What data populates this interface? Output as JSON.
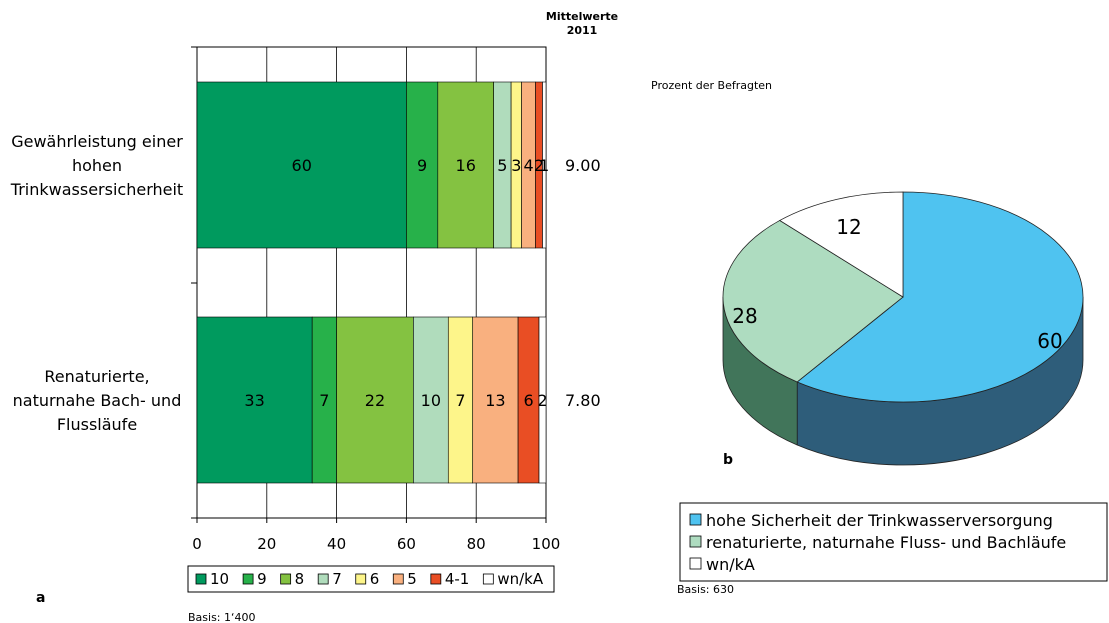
{
  "chart_data": [
    {
      "type": "bar",
      "orientation": "horizontal",
      "stacked": true,
      "panel_label": "a",
      "header_line1": "Mittelwerte",
      "header_line2": "2011",
      "basis": "Basis: 1‘400",
      "xlim": [
        0,
        100
      ],
      "x_ticks": [
        "0",
        "20",
        "40",
        "60",
        "80",
        "100"
      ],
      "grid": true,
      "legend_position": "bottom",
      "categories": [
        {
          "label_lines": [
            "Gewährleistung einer",
            "hohen",
            "Trinkwassersicherheit"
          ],
          "mean": "9.00"
        },
        {
          "label_lines": [
            "Renaturierte,",
            "naturnahe Bach- und",
            "Flussläufe"
          ],
          "mean": "7.80"
        }
      ],
      "series": [
        {
          "name": "10",
          "color": "#009a5e",
          "values": [
            60,
            33
          ],
          "labels": [
            "60",
            "33"
          ]
        },
        {
          "name": "9",
          "color": "#27b14a",
          "values": [
            9,
            7
          ],
          "labels": [
            "9",
            "7"
          ]
        },
        {
          "name": "8",
          "color": "#84c241",
          "values": [
            16,
            22
          ],
          "labels": [
            "16",
            "22"
          ]
        },
        {
          "name": "7",
          "color": "#b0dcbc",
          "values": [
            5,
            10
          ],
          "labels": [
            "5",
            "10"
          ]
        },
        {
          "name": "6",
          "color": "#fdf58a",
          "values": [
            3,
            7
          ],
          "labels": [
            "3",
            "7"
          ]
        },
        {
          "name": "5",
          "color": "#f9b07f",
          "values": [
            4,
            13
          ],
          "labels": [
            "4",
            "13"
          ]
        },
        {
          "name": "4-1",
          "color": "#e94e24",
          "values": [
            2,
            6
          ],
          "labels": [
            "2",
            "6"
          ]
        },
        {
          "name": "wn/kA",
          "color": "#ffffff",
          "values": [
            1,
            2
          ],
          "labels": [
            "1",
            "2"
          ]
        }
      ]
    },
    {
      "type": "pie",
      "panel_label": "b",
      "subtitle": "Prozent der Befragten",
      "basis": "Basis: 630",
      "legend_position": "bottom",
      "slices": [
        {
          "name": "hohe Sicherheit der Trinkwasserversorgung",
          "value": 60,
          "label": "60",
          "color": "#4fc3f0",
          "side_color": "#2e5d7a"
        },
        {
          "name": "renaturierte, naturnahe Fluss- und Bachläufe",
          "value": 28,
          "label": "28",
          "color": "#aedcc0",
          "side_color": "#41755a"
        },
        {
          "name": "wn/kA",
          "value": 12,
          "label": "12",
          "color": "#ffffff",
          "side_color": "#d0d0d0"
        }
      ]
    }
  ]
}
